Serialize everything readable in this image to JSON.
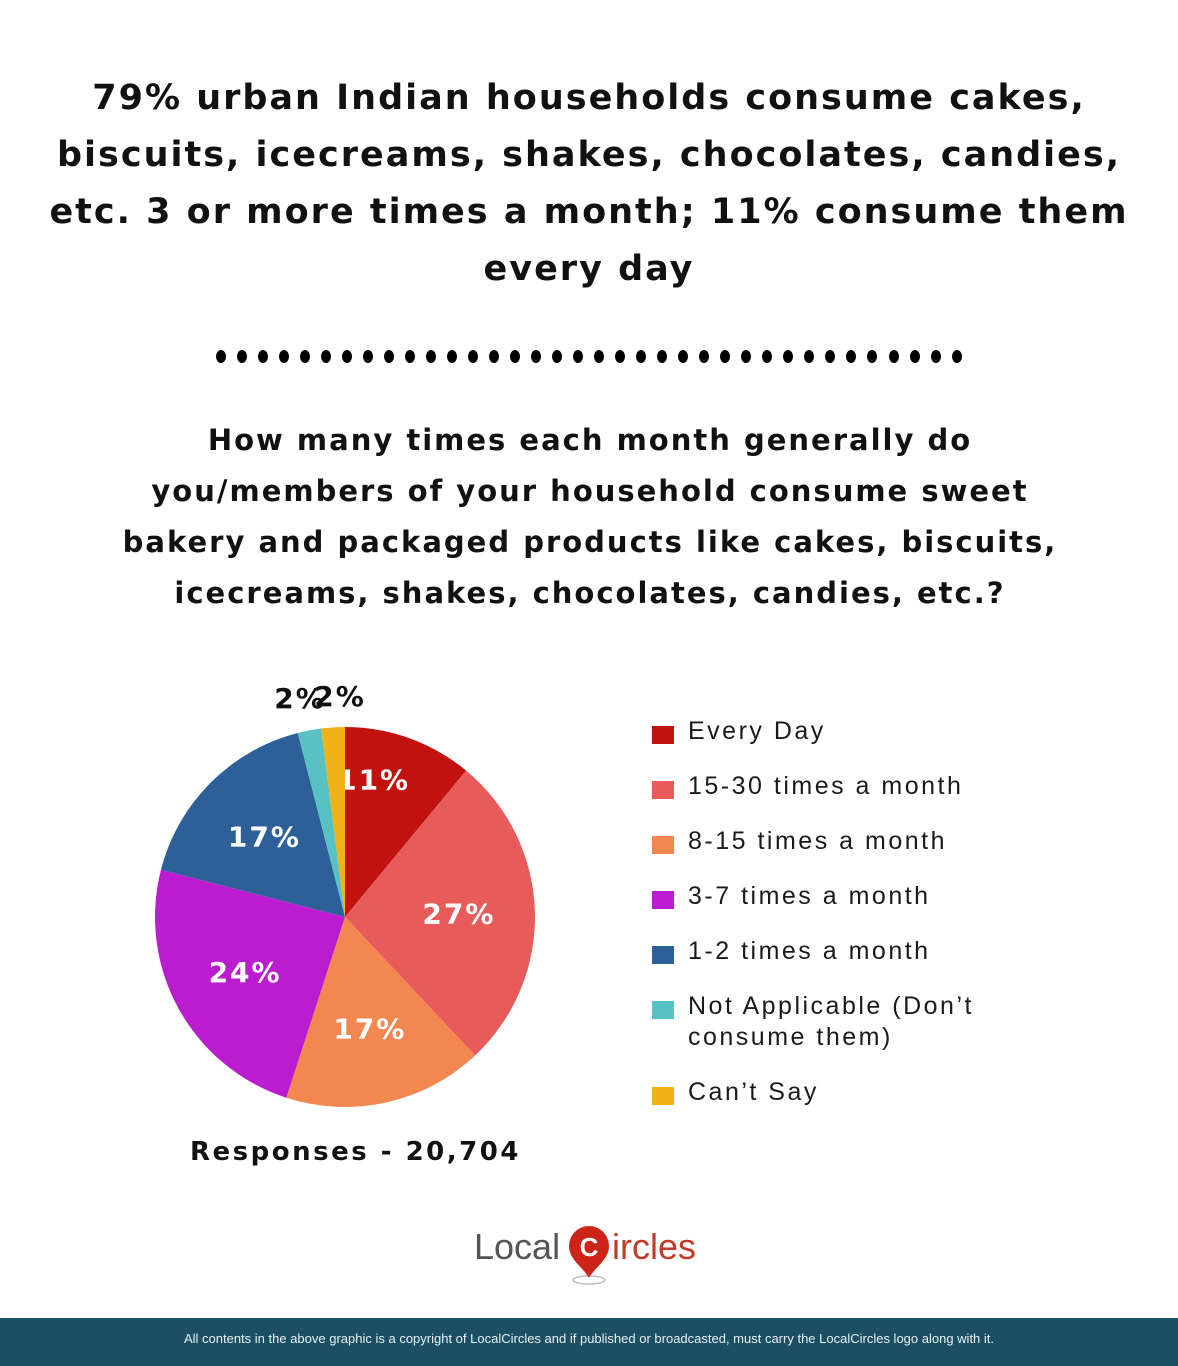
{
  "headline": "79% urban Indian households consume cakes, biscuits, icecreams, shakes, chocolates, candies, etc. 3 or more times a month; 11% consume them every day",
  "question": "How many times each month generally do you/members of your household consume sweet bakery and packaged products like cakes, biscuits, icecreams, shakes, chocolates, candies, etc.?",
  "responses_label": "Responses - 20,704",
  "logo": {
    "left": "Local",
    "right": "ircles",
    "mark": "C"
  },
  "footer": "All contents in the above graphic is a copyright of LocalCircles and if published or broadcasted, must carry the LocalCircles logo along with it.",
  "legend": [
    {
      "label": "Every Day",
      "color": "#c0120f"
    },
    {
      "label": "15-30 times a month",
      "color": "#e85b5b"
    },
    {
      "label": "8-15 times a month",
      "color": "#f2874f"
    },
    {
      "label": "3-7 times a month",
      "color": "#bb1ccf"
    },
    {
      "label": "1-2 times a month",
      "color": "#2d5f98"
    },
    {
      "label": "Not Applicable (Don’t consume them)",
      "color": "#57c1c4"
    },
    {
      "label": "Can’t Say",
      "color": "#f0b317"
    }
  ],
  "chart_data": {
    "type": "pie",
    "title": "How many times each month generally do you/members of your household consume sweet bakery and packaged products like cakes, biscuits, icecreams, shakes, chocolates, candies, etc.?",
    "categories": [
      "Every Day",
      "15-30 times a month",
      "8-15 times a month",
      "3-7 times a month",
      "1-2 times a month",
      "Not Applicable (Don’t consume them)",
      "Can’t Say"
    ],
    "values": [
      11,
      27,
      17,
      24,
      17,
      2,
      2
    ],
    "labels": [
      "11%",
      "27%",
      "17%",
      "24%",
      "17%",
      "2%",
      "2%"
    ],
    "colors": [
      "#c0120f",
      "#e85b5b",
      "#f2874f",
      "#bb1ccf",
      "#2d5f98",
      "#57c1c4",
      "#f0b317"
    ],
    "start_angle": "12 o'clock, clockwise",
    "legend_position": "right",
    "annotation": "Responses - 20,704"
  }
}
